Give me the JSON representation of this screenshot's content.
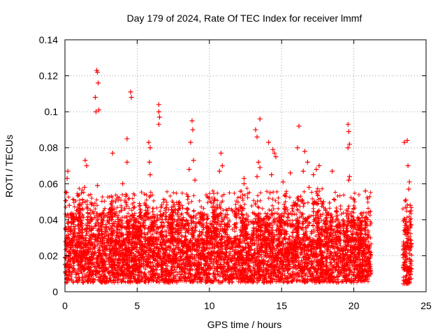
{
  "chart_data": {
    "type": "scatter",
    "title": "Day 179 of 2024, Rate Of TEC Index for receiver lmmf",
    "xlabel": "GPS time / hours",
    "ylabel": "ROTI / TECUs",
    "xlim": [
      0,
      25
    ],
    "ylim": [
      0,
      0.14
    ],
    "xticks": [
      0,
      5,
      10,
      15,
      20,
      25
    ],
    "yticks": [
      0,
      0.02,
      0.04,
      0.06,
      0.08,
      0.1,
      0.12,
      0.14
    ],
    "ytick_labels": [
      "0",
      "0.02",
      "0.04",
      "0.06",
      "0.08",
      "0.1",
      "0.12",
      "0.14"
    ],
    "xtick_labels": [
      "0",
      "5",
      "10",
      "15",
      "20",
      "25"
    ],
    "grid": true,
    "marker": "+",
    "series": [
      {
        "name": "ROTI",
        "color": "#ff0000",
        "segments": [
          {
            "x_start": 0.0,
            "x_end": 21.2,
            "base_min": 0.005,
            "base_max": 0.03,
            "dense": true
          },
          {
            "x_start": 23.4,
            "x_end": 24.0,
            "base_min": 0.004,
            "base_max": 0.027,
            "dense": true
          }
        ],
        "points": [
          {
            "x": 0.1,
            "y": 0.055
          },
          {
            "x": 0.15,
            "y": 0.063
          },
          {
            "x": 0.2,
            "y": 0.067
          },
          {
            "x": 0.3,
            "y": 0.048
          },
          {
            "x": 0.9,
            "y": 0.047
          },
          {
            "x": 1.4,
            "y": 0.073
          },
          {
            "x": 1.5,
            "y": 0.07
          },
          {
            "x": 1.35,
            "y": 0.058
          },
          {
            "x": 2.1,
            "y": 0.108
          },
          {
            "x": 2.15,
            "y": 0.1
          },
          {
            "x": 2.2,
            "y": 0.123
          },
          {
            "x": 2.25,
            "y": 0.122
          },
          {
            "x": 2.3,
            "y": 0.116
          },
          {
            "x": 2.35,
            "y": 0.101
          },
          {
            "x": 2.25,
            "y": 0.059
          },
          {
            "x": 3.3,
            "y": 0.077
          },
          {
            "x": 3.4,
            "y": 0.046
          },
          {
            "x": 4.0,
            "y": 0.06
          },
          {
            "x": 4.3,
            "y": 0.085
          },
          {
            "x": 4.3,
            "y": 0.072
          },
          {
            "x": 4.55,
            "y": 0.111
          },
          {
            "x": 4.6,
            "y": 0.108
          },
          {
            "x": 5.8,
            "y": 0.083
          },
          {
            "x": 5.9,
            "y": 0.08
          },
          {
            "x": 5.85,
            "y": 0.072
          },
          {
            "x": 5.9,
            "y": 0.065
          },
          {
            "x": 6.5,
            "y": 0.104
          },
          {
            "x": 6.5,
            "y": 0.1
          },
          {
            "x": 6.55,
            "y": 0.097
          },
          {
            "x": 6.5,
            "y": 0.093
          },
          {
            "x": 7.4,
            "y": 0.047
          },
          {
            "x": 8.6,
            "y": 0.068
          },
          {
            "x": 8.8,
            "y": 0.095
          },
          {
            "x": 8.85,
            "y": 0.09
          },
          {
            "x": 8.7,
            "y": 0.083
          },
          {
            "x": 8.9,
            "y": 0.073
          },
          {
            "x": 9.0,
            "y": 0.062
          },
          {
            "x": 10.7,
            "y": 0.067
          },
          {
            "x": 10.8,
            "y": 0.077
          },
          {
            "x": 10.9,
            "y": 0.07
          },
          {
            "x": 11.6,
            "y": 0.045
          },
          {
            "x": 12.4,
            "y": 0.063
          },
          {
            "x": 12.4,
            "y": 0.06
          },
          {
            "x": 13.2,
            "y": 0.09
          },
          {
            "x": 13.3,
            "y": 0.086
          },
          {
            "x": 13.5,
            "y": 0.096
          },
          {
            "x": 13.4,
            "y": 0.072
          },
          {
            "x": 13.5,
            "y": 0.069
          },
          {
            "x": 13.3,
            "y": 0.064
          },
          {
            "x": 14.1,
            "y": 0.083
          },
          {
            "x": 14.3,
            "y": 0.065
          },
          {
            "x": 14.4,
            "y": 0.079
          },
          {
            "x": 14.5,
            "y": 0.077
          },
          {
            "x": 14.6,
            "y": 0.075
          },
          {
            "x": 14.2,
            "y": 0.055
          },
          {
            "x": 15.1,
            "y": 0.061
          },
          {
            "x": 15.3,
            "y": 0.053
          },
          {
            "x": 15.6,
            "y": 0.066
          },
          {
            "x": 16.1,
            "y": 0.08
          },
          {
            "x": 16.2,
            "y": 0.092
          },
          {
            "x": 16.6,
            "y": 0.078
          },
          {
            "x": 16.8,
            "y": 0.072
          },
          {
            "x": 16.5,
            "y": 0.067
          },
          {
            "x": 16.9,
            "y": 0.058
          },
          {
            "x": 17.2,
            "y": 0.065
          },
          {
            "x": 17.4,
            "y": 0.068
          },
          {
            "x": 17.6,
            "y": 0.07
          },
          {
            "x": 17.9,
            "y": 0.05
          },
          {
            "x": 18.5,
            "y": 0.067
          },
          {
            "x": 19.6,
            "y": 0.093
          },
          {
            "x": 19.65,
            "y": 0.089
          },
          {
            "x": 19.7,
            "y": 0.082
          },
          {
            "x": 19.6,
            "y": 0.08
          },
          {
            "x": 19.65,
            "y": 0.062
          },
          {
            "x": 19.7,
            "y": 0.064
          },
          {
            "x": 20.6,
            "y": 0.035
          },
          {
            "x": 20.8,
            "y": 0.056
          },
          {
            "x": 23.5,
            "y": 0.083
          },
          {
            "x": 23.6,
            "y": 0.051
          },
          {
            "x": 23.7,
            "y": 0.084
          },
          {
            "x": 23.75,
            "y": 0.07
          },
          {
            "x": 23.8,
            "y": 0.057
          },
          {
            "x": 23.85,
            "y": 0.061
          },
          {
            "x": 23.9,
            "y": 0.048
          },
          {
            "x": 23.95,
            "y": 0.045
          },
          {
            "x": 23.5,
            "y": 0.034
          },
          {
            "x": 23.55,
            "y": 0.032
          }
        ]
      }
    ]
  }
}
